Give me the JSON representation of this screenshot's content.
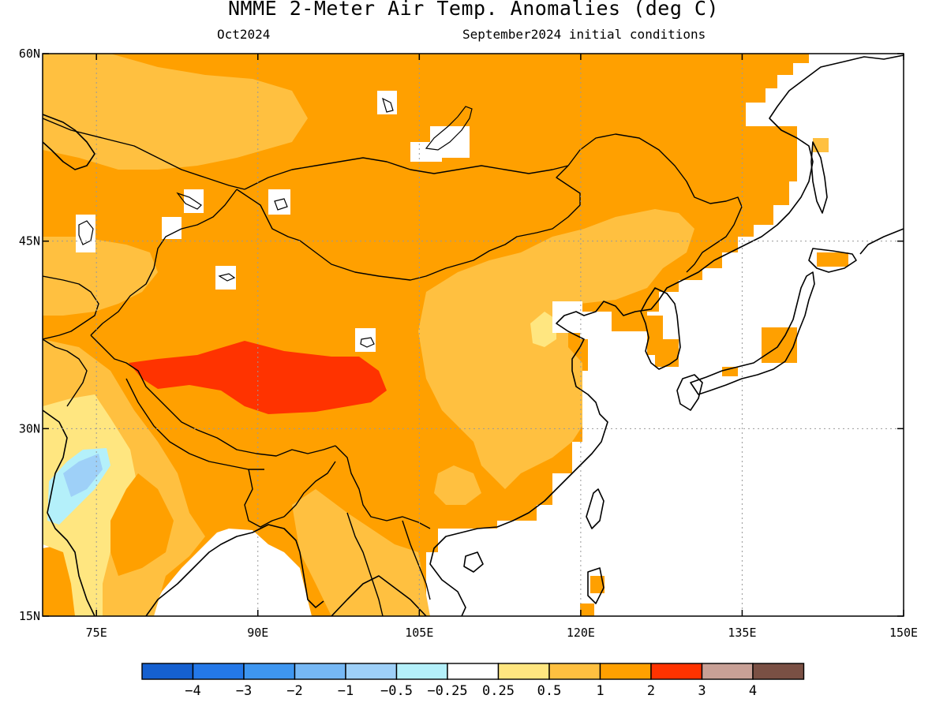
{
  "map": {
    "title": "NMME 2-Meter Air Temp. Anomalies (deg C)",
    "valid_month": "Oct2024",
    "initial_conditions": "September2024 initial conditions",
    "region": "East and South Asia",
    "lat_range": [
      15,
      60
    ],
    "lon_range": [
      70,
      150
    ],
    "lat_ticks": [
      {
        "value": 15,
        "label": "15N"
      },
      {
        "value": 30,
        "label": "30N"
      },
      {
        "value": 45,
        "label": "45N"
      },
      {
        "value": 60,
        "label": "60N"
      }
    ],
    "lon_ticks": [
      {
        "value": 75,
        "label": "75E"
      },
      {
        "value": 90,
        "label": "90E"
      },
      {
        "value": 105,
        "label": "105E"
      },
      {
        "value": 120,
        "label": "120E"
      },
      {
        "value": 135,
        "label": "135E"
      },
      {
        "value": 150,
        "label": "150E"
      }
    ],
    "gridlines": "dotted"
  },
  "legend": {
    "colors": [
      "#1560d0",
      "#2478e8",
      "#3e96f0",
      "#76b8f5",
      "#9ed0f8",
      "#b4f0fa",
      "#ffffff",
      "#ffe680",
      "#ffc040",
      "#ffa000",
      "#ff3300",
      "#c8a096",
      "#7a5044"
    ],
    "labels": [
      "−4",
      "−3",
      "−2",
      "−1",
      "−0.5",
      "−0.25",
      "0.25",
      "0.5",
      "1",
      "2",
      "3",
      "4"
    ]
  },
  "regions": [
    {
      "name": "Siberia / Mongolia / northern China",
      "category": "1 to 2"
    },
    {
      "name": "Tibetan Plateau",
      "category": "2 to 3"
    },
    {
      "name": "Eastern China",
      "category": "0.5 to 1"
    },
    {
      "name": "Western India",
      "category": "-1 to -0.5"
    },
    {
      "name": "Ocean and Japan",
      "category": "-0.25 to 0.25"
    }
  ]
}
